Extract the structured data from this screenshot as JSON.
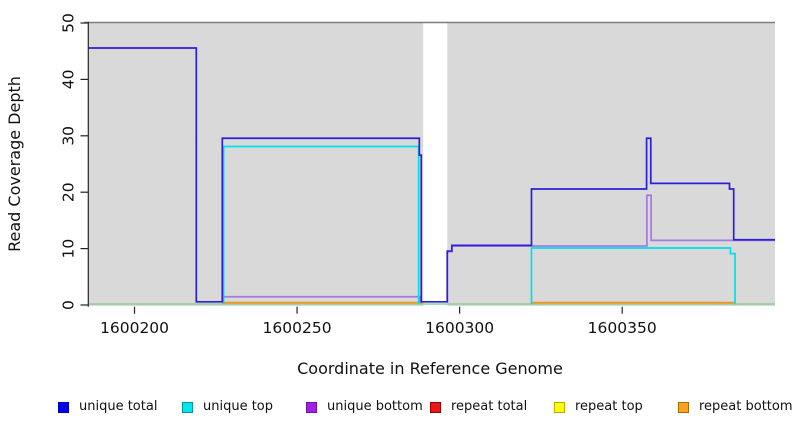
{
  "figure": {
    "kind": "genome read coverage step plot",
    "background": "#ffffff"
  },
  "chart_data": {
    "type": "line",
    "step": true,
    "title": "",
    "xlabel": "Coordinate in Reference Genome",
    "ylabel": "Read Coverage Depth",
    "x_range": [
      1600186,
      1600397
    ],
    "y_range": [
      0,
      50
    ],
    "x_ticks": [
      {
        "value": 1600200,
        "label": "1600200"
      },
      {
        "value": 1600250,
        "label": "1600250"
      },
      {
        "value": 1600300,
        "label": "1600300"
      },
      {
        "value": 1600350,
        "label": "1600350"
      }
    ],
    "y_ticks": [
      {
        "value": 0,
        "label": "0"
      },
      {
        "value": 10,
        "label": "10"
      },
      {
        "value": 20,
        "label": "20"
      },
      {
        "value": 30,
        "label": "30"
      },
      {
        "value": 40,
        "label": "40"
      },
      {
        "value": 50,
        "label": "50"
      }
    ],
    "panel_bg": "#d9d9d9",
    "panel_top_border": "#7e7e7e",
    "axis_color": "#222222",
    "text_color": "#111111",
    "coverage_blocks": [
      [
        1600186,
        1600288.8
      ],
      [
        1600296.2,
        1600397
      ]
    ],
    "baseline": {
      "y": 0,
      "color": "#8fd08f"
    },
    "series": [
      {
        "name": "repeat bottom",
        "color": "#ff9015",
        "parts": [
          [
            [
              1600227,
              0
            ],
            [
              1600288.8,
              0
            ]
          ],
          [
            [
              1600322.1,
              0
            ],
            [
              1600384.7,
              0
            ]
          ]
        ]
      },
      {
        "name": "unique bottom",
        "color": "#a678e2",
        "parts": [
          [
            [
              1600227,
              0
            ],
            [
              1600227,
              1
            ],
            [
              1600287.8,
              1
            ],
            [
              1600287.8,
              0
            ]
          ],
          [
            [
              1600296.2,
              0
            ],
            [
              1600296.2,
              9
            ],
            [
              1600297.6,
              9
            ],
            [
              1600297.6,
              10
            ],
            [
              1600357.6,
              10
            ],
            [
              1600357.6,
              19
            ],
            [
              1600358.9,
              19
            ],
            [
              1600358.9,
              11
            ],
            [
              1600397,
              11
            ]
          ]
        ]
      },
      {
        "name": "unique top",
        "color": "#00e0ea",
        "parts": [
          [
            [
              1600227.4,
              0
            ],
            [
              1600227.4,
              28
            ],
            [
              1600287.4,
              28
            ],
            [
              1600287.4,
              0
            ]
          ],
          [
            [
              1600322.1,
              0
            ],
            [
              1600322.1,
              10
            ],
            [
              1600383.3,
              10
            ],
            [
              1600383.3,
              9
            ],
            [
              1600384.7,
              9
            ],
            [
              1600384.7,
              0
            ]
          ]
        ]
      },
      {
        "name": "unique total",
        "color": "#2c1fdb",
        "parts": [
          [
            [
              1600186,
              45
            ],
            [
              1600219,
              45
            ],
            [
              1600219,
              0
            ],
            [
              1600227,
              0
            ],
            [
              1600227,
              29
            ],
            [
              1600287.6,
              29
            ],
            [
              1600287.6,
              26
            ],
            [
              1600288.2,
              26
            ],
            [
              1600288.2,
              0
            ],
            [
              1600296.2,
              0
            ],
            [
              1600296.2,
              9
            ],
            [
              1600297.6,
              9
            ],
            [
              1600297.6,
              10
            ],
            [
              1600322.1,
              10
            ],
            [
              1600322.1,
              20
            ],
            [
              1600357.5,
              20
            ],
            [
              1600357.5,
              29
            ],
            [
              1600358.8,
              29
            ],
            [
              1600358.8,
              21
            ],
            [
              1600383,
              21
            ],
            [
              1600383,
              20
            ],
            [
              1600384.3,
              20
            ],
            [
              1600384.3,
              11
            ],
            [
              1600397,
              11
            ]
          ]
        ]
      }
    ],
    "legend": [
      {
        "label": "unique total",
        "fill": "#0000f0",
        "border": "#0000b0"
      },
      {
        "label": "unique top",
        "fill": "#00e5ee",
        "border": "#00959e"
      },
      {
        "label": "unique bottom",
        "fill": "#a21fe8",
        "border": "#6d12a0"
      },
      {
        "label": "repeat total",
        "fill": "#ed1515",
        "border": "#990000"
      },
      {
        "label": "repeat top",
        "fill": "#fdfd02",
        "border": "#b0b000"
      },
      {
        "label": "repeat bottom",
        "fill": "#ffa01e",
        "border": "#a56a00"
      }
    ],
    "legend_position": "bottom"
  }
}
